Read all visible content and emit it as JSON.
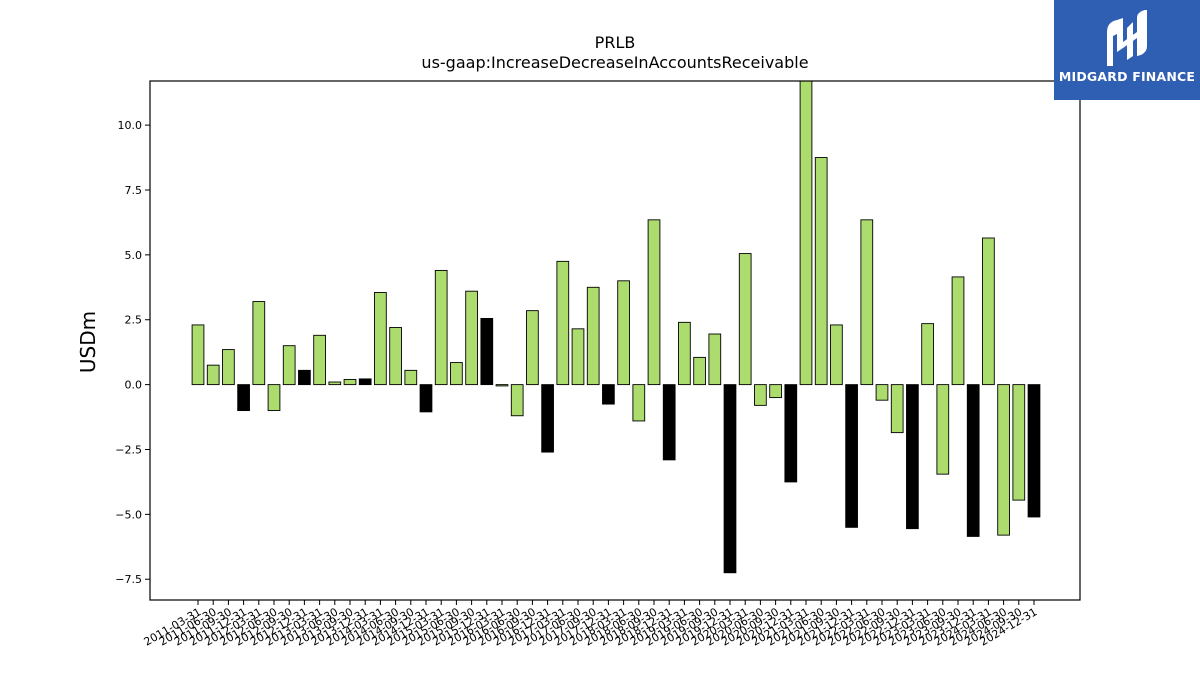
{
  "brand": {
    "name": "MIDGARD FINANCE",
    "logo_icon": "midgard-m-logo-icon",
    "background": "#2f5fb3"
  },
  "colors": {
    "positive_bar": "#addc6e",
    "negative_alt_bar": "#000000",
    "edge": "#000000"
  },
  "chart_data": {
    "type": "bar",
    "title": "PRLB",
    "subtitle": "us-gaap:IncreaseDecreaseInAccountsReceivable",
    "xlabel": "",
    "ylabel": "USDm",
    "ylim": [
      -8.3,
      11.7
    ],
    "yticks": [
      -7.5,
      -5.0,
      -2.5,
      0.0,
      2.5,
      5.0,
      7.5,
      10.0
    ],
    "ytick_labels": [
      "−7.5",
      "−5.0",
      "−2.5",
      "0.0",
      "2.5",
      "5.0",
      "7.5",
      "10.0"
    ],
    "grid": false,
    "categories": [
      "2011-03-31",
      "2011-06-30",
      "2011-09-30",
      "2011-12-31",
      "2012-03-31",
      "2012-06-30",
      "2012-09-30",
      "2012-12-31",
      "2013-03-31",
      "2013-06-30",
      "2013-09-30",
      "2013-12-31",
      "2014-03-31",
      "2014-06-30",
      "2014-09-30",
      "2014-12-31",
      "2015-03-31",
      "2015-06-30",
      "2015-09-30",
      "2015-12-31",
      "2016-03-31",
      "2016-06-30",
      "2016-09-30",
      "2016-12-31",
      "2017-03-31",
      "2017-06-30",
      "2017-09-30",
      "2017-12-31",
      "2018-03-31",
      "2018-06-30",
      "2018-09-30",
      "2018-12-31",
      "2019-03-31",
      "2019-06-30",
      "2019-09-30",
      "2019-12-31",
      "2020-03-31",
      "2020-06-30",
      "2020-09-30",
      "2020-12-31",
      "2021-03-31",
      "2021-06-30",
      "2021-09-30",
      "2021-12-31",
      "2022-03-31",
      "2022-06-30",
      "2022-09-30",
      "2022-12-31",
      "2023-03-31",
      "2023-06-30",
      "2023-09-30",
      "2023-12-31",
      "2024-03-31",
      "2024-06-30",
      "2024-09-30",
      "2024-12-31"
    ],
    "tick_labels": [
      "2011-03-31",
      "2011-06-30",
      "2011-09-30",
      "2011-12-31",
      "2012-03-31",
      "2012-06-30",
      "2012-09-30",
      "2012-12-31",
      "2013-03-31",
      "2013-06-30",
      "2013-09-30",
      "2013-12-31",
      "2014-03-31",
      "2014-06-30",
      "2014-09-30",
      "2014-12-31",
      "2015-03-31",
      "2015-06-30",
      "2015-09-30",
      "2015-12-31",
      "2016-03-31",
      "2016-06-30",
      "2016-09-30",
      "2016-12-31",
      "2017-03-31",
      "2017-06-30",
      "2017-09-30",
      "2017-12-31",
      "2018-03-31",
      "2018-06-30",
      "2018-09-30",
      "2018-12-31",
      "2019-03-31",
      "2019-06-30",
      "2019-09-30",
      "2019-12-31",
      "2020-03-31",
      "2020-06-30",
      "2020-09-30",
      "2020-12-31",
      "2021-03-31",
      "2021-06-30",
      "2021-09-30",
      "2021-12-31",
      "2022-03-31",
      "2022-06-30",
      "2022-09-30",
      "2022-12-31",
      "2023-03-31",
      "2023-06-30",
      "2023-09-30",
      "2023-12-31",
      "2024-03-31",
      "2024-06-30",
      "2024-09-30",
      "2024-12-31"
    ],
    "values": [
      2.3,
      0.75,
      1.35,
      -1.0,
      3.2,
      -1.0,
      1.5,
      0.55,
      1.9,
      0.1,
      0.2,
      0.22,
      3.55,
      2.2,
      0.55,
      -1.05,
      4.4,
      0.85,
      3.6,
      2.55,
      -0.05,
      -1.2,
      2.85,
      -2.6,
      4.75,
      2.15,
      3.75,
      -0.75,
      4.0,
      -1.4,
      6.35,
      -2.9,
      2.4,
      1.05,
      1.95,
      -7.25,
      5.05,
      -0.8,
      -0.5,
      -3.75,
      11.7,
      8.75,
      2.3,
      -5.5,
      6.35,
      -0.6,
      -1.85,
      -5.55,
      2.35,
      -3.45,
      4.15,
      -5.85,
      5.65,
      -5.8,
      -4.45,
      -5.1
    ],
    "bar_colors": [
      "#addc6e",
      "#addc6e",
      "#addc6e",
      "#000000",
      "#addc6e",
      "#addc6e",
      "#addc6e",
      "#000000",
      "#addc6e",
      "#addc6e",
      "#addc6e",
      "#000000",
      "#addc6e",
      "#addc6e",
      "#addc6e",
      "#000000",
      "#addc6e",
      "#addc6e",
      "#addc6e",
      "#000000",
      "#addc6e",
      "#addc6e",
      "#addc6e",
      "#000000",
      "#addc6e",
      "#addc6e",
      "#addc6e",
      "#000000",
      "#addc6e",
      "#addc6e",
      "#addc6e",
      "#000000",
      "#addc6e",
      "#addc6e",
      "#addc6e",
      "#000000",
      "#addc6e",
      "#addc6e",
      "#addc6e",
      "#000000",
      "#addc6e",
      "#addc6e",
      "#addc6e",
      "#000000",
      "#addc6e",
      "#addc6e",
      "#addc6e",
      "#000000",
      "#addc6e",
      "#addc6e",
      "#addc6e",
      "#000000",
      "#addc6e",
      "#addc6e",
      "#addc6e",
      "#000000"
    ]
  }
}
